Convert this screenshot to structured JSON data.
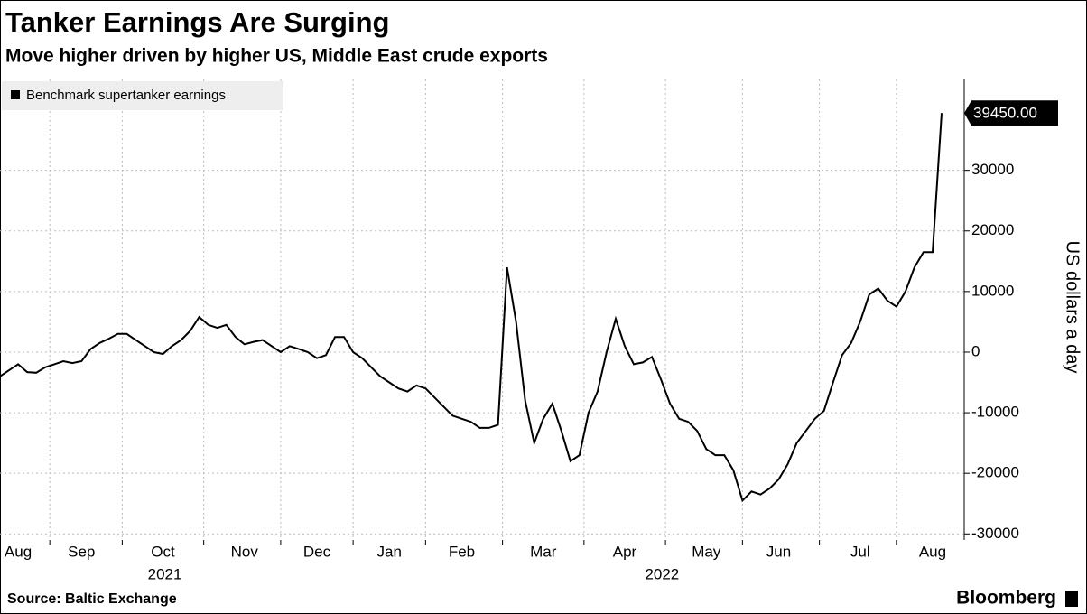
{
  "chart_data": {
    "type": "line",
    "title": "Tanker Earnings Are Surging",
    "subtitle": "Move higher driven by higher US, Middle East crude exports",
    "y_label": "US dollars a day",
    "source": "Source: Baltic Exchange",
    "brand": "Bloomberg",
    "year_labels": [
      "2021",
      "2022"
    ],
    "categories": [
      null,
      null,
      "Aug",
      null,
      null,
      null,
      null,
      null,
      null,
      "Sep",
      null,
      null,
      null,
      null,
      null,
      null,
      null,
      null,
      "Oct",
      null,
      null,
      null,
      null,
      null,
      null,
      null,
      null,
      "Nov",
      null,
      null,
      null,
      null,
      null,
      null,
      null,
      "Dec",
      null,
      null,
      null,
      null,
      null,
      null,
      null,
      "Jan",
      null,
      null,
      null,
      null,
      null,
      null,
      null,
      "Feb",
      null,
      null,
      null,
      null,
      null,
      null,
      null,
      null,
      "Mar",
      null,
      null,
      null,
      null,
      null,
      null,
      null,
      null,
      "Apr",
      null,
      null,
      null,
      null,
      null,
      null,
      null,
      null,
      "May",
      null,
      null,
      null,
      null,
      null,
      null,
      null,
      "Jun",
      null,
      null,
      null,
      null,
      null,
      null,
      null,
      null,
      "Jul",
      null,
      null,
      null,
      null,
      null,
      null,
      null,
      "Aug",
      null
    ],
    "series": [
      {
        "name": "Benchmark supertanker earnings",
        "color": "#000000",
        "values": [
          -4000,
          -3000,
          -2000,
          -3300,
          -3400,
          -2500,
          -2000,
          -1500,
          -1800,
          -1500,
          500,
          1500,
          2200,
          3000,
          3000,
          2000,
          1000,
          0,
          -300,
          1000,
          2000,
          3500,
          5800,
          4500,
          4000,
          4500,
          2500,
          1300,
          1700,
          2000,
          1000,
          0,
          1000,
          500,
          0,
          -1000,
          -500,
          2500,
          2500,
          0,
          -1000,
          -2500,
          -4000,
          -5000,
          -6000,
          -6500,
          -5500,
          -6000,
          -7500,
          -9000,
          -10500,
          -11000,
          -11500,
          -12500,
          -12500,
          -12000,
          14000,
          5000,
          -8000,
          -15000,
          -11000,
          -8500,
          -13000,
          -18000,
          -17000,
          -10000,
          -6500,
          0,
          5500,
          1000,
          -2000,
          -1700,
          -800,
          -4500,
          -8500,
          -11000,
          -11500,
          -13000,
          -16000,
          -17000,
          -17000,
          -19500,
          -24500,
          -23000,
          -23500,
          -22500,
          -21000,
          -18500,
          -15000,
          -13000,
          -11000,
          -9700,
          -5000,
          -500,
          1500,
          5000,
          9500,
          10500,
          8500,
          7500,
          10000,
          14000,
          16500,
          16500,
          39450
        ],
        "value_labels": [
          null,
          null,
          null,
          null,
          null,
          null,
          null,
          null,
          null,
          null,
          null,
          null,
          null,
          null,
          null,
          null,
          null,
          null,
          null,
          null,
          null,
          null,
          null,
          null,
          null,
          null,
          null,
          null,
          null,
          null,
          null,
          null,
          null,
          null,
          null,
          null,
          null,
          null,
          null,
          null,
          null,
          null,
          null,
          null,
          null,
          null,
          null,
          null,
          null,
          null,
          null,
          null,
          null,
          null,
          null,
          null,
          null,
          null,
          null,
          null,
          null,
          null,
          null,
          null,
          null,
          null,
          null,
          null,
          null,
          null,
          null,
          null,
          null,
          null,
          null,
          null,
          null,
          null,
          null,
          null,
          null,
          null,
          null,
          null,
          null,
          null,
          null,
          null,
          null,
          null,
          null,
          null,
          null,
          null,
          null,
          null,
          null,
          null,
          null,
          null,
          null,
          null,
          null,
          null,
          "39450.00"
        ]
      }
    ],
    "ylim": [
      -31000,
      45000
    ],
    "yticks": [
      -30000,
      -20000,
      -10000,
      0,
      10000,
      20000,
      30000
    ],
    "grid": true,
    "legend": "top-left"
  }
}
